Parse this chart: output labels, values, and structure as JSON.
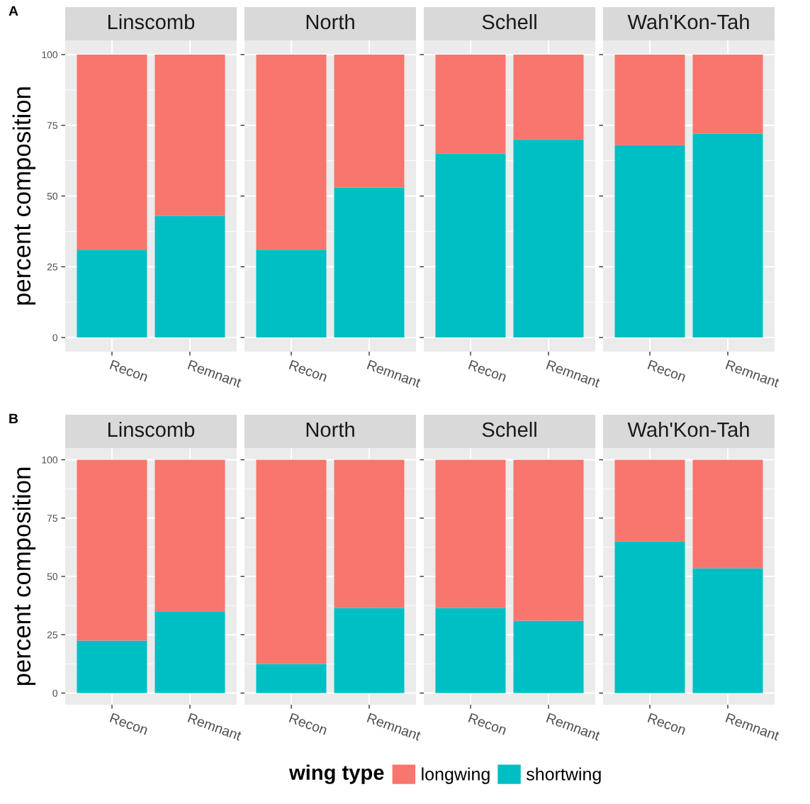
{
  "chart_data": [
    {
      "type": "bar",
      "stacked": true,
      "title": "Linscomb",
      "ylabel": "percent composition",
      "annotations": [
        "A"
      ],
      "categories": [
        "Recon",
        "Remnant"
      ],
      "ylim": [
        -5,
        105
      ],
      "yticks": [
        0,
        25,
        50,
        75,
        100
      ],
      "grid": true,
      "legend": "bottom",
      "legend_title": "wing type",
      "series": [
        {
          "name": "shortwing",
          "color": "#00bfc4",
          "values": [
            31,
            43
          ]
        },
        {
          "name": "longwing",
          "color": "#f8766d",
          "values": [
            69,
            57
          ]
        }
      ]
    },
    {
      "type": "bar",
      "stacked": true,
      "title": "North",
      "categories": [
        "Recon",
        "Remnant"
      ],
      "ylim": [
        -5,
        105
      ],
      "yticks": [
        0,
        25,
        50,
        75,
        100
      ],
      "grid": true,
      "tick_labels": "x",
      "series": [
        {
          "color": "#00bfc4",
          "values": [
            31,
            53
          ]
        },
        {
          "color": "#f8766d",
          "values": [
            69,
            47
          ]
        }
      ]
    },
    {
      "type": "bar",
      "stacked": true,
      "title": "Schell",
      "categories": [
        "Recon",
        "Remnant"
      ],
      "ylim": [
        -5,
        105
      ],
      "yticks": [
        0,
        25,
        50,
        75,
        100
      ],
      "grid": true,
      "tick_labels": "x",
      "series": [
        {
          "color": "#00bfc4",
          "values": [
            65,
            70
          ]
        },
        {
          "color": "#f8766d",
          "values": [
            35,
            30
          ]
        }
      ]
    },
    {
      "type": "bar",
      "stacked": true,
      "title": "Wah'Kon-Tah",
      "categories": [
        "Recon",
        "Remnant"
      ],
      "ylim": [
        -5,
        105
      ],
      "yticks": [
        0,
        25,
        50,
        75,
        100
      ],
      "grid": true,
      "tick_labels": "x",
      "series": [
        {
          "color": "#00bfc4",
          "values": [
            68,
            72
          ]
        },
        {
          "color": "#f8766d",
          "values": [
            32,
            28
          ]
        }
      ]
    },
    {
      "type": "bar",
      "stacked": true,
      "title": "Linscomb",
      "ylabel": "percent composition",
      "annotations": [
        "B"
      ],
      "categories": [
        "Recon",
        "Remnant"
      ],
      "ylim": [
        -5,
        105
      ],
      "yticks": [
        0,
        25,
        50,
        75,
        100
      ],
      "grid": true,
      "series": [
        {
          "color": "#00bfc4",
          "values": [
            22.5,
            35
          ]
        },
        {
          "color": "#f8766d",
          "values": [
            77.5,
            65
          ]
        }
      ]
    },
    {
      "type": "bar",
      "stacked": true,
      "title": "North",
      "categories": [
        "Recon",
        "Remnant"
      ],
      "ylim": [
        -5,
        105
      ],
      "yticks": [
        0,
        25,
        50,
        75,
        100
      ],
      "grid": true,
      "tick_labels": "x",
      "series": [
        {
          "color": "#00bfc4",
          "values": [
            12.5,
            36.5
          ]
        },
        {
          "color": "#f8766d",
          "values": [
            87.5,
            63.5
          ]
        }
      ]
    },
    {
      "type": "bar",
      "stacked": true,
      "title": "Schell",
      "categories": [
        "Recon",
        "Remnant"
      ],
      "ylim": [
        -5,
        105
      ],
      "yticks": [
        0,
        25,
        50,
        75,
        100
      ],
      "grid": true,
      "tick_labels": "x",
      "series": [
        {
          "color": "#00bfc4",
          "values": [
            36.5,
            31
          ]
        },
        {
          "color": "#f8766d",
          "values": [
            63.5,
            69
          ]
        }
      ]
    },
    {
      "type": "bar",
      "stacked": true,
      "title": "Wah'Kon-Tah",
      "categories": [
        "Recon",
        "Remnant"
      ],
      "ylim": [
        -5,
        105
      ],
      "yticks": [
        0,
        25,
        50,
        75,
        100
      ],
      "grid": true,
      "tick_labels": "x",
      "series": [
        {
          "color": "#00bfc4",
          "values": [
            65,
            53.5
          ]
        },
        {
          "color": "#f8766d",
          "values": [
            35,
            46.5
          ]
        }
      ]
    }
  ]
}
